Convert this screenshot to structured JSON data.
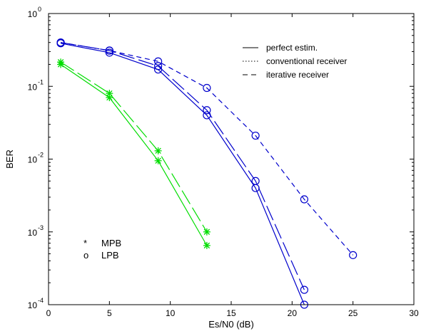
{
  "chart_data": {
    "type": "line",
    "xlabel": "Es/N0 (dB)",
    "ylabel": "BER",
    "xlim": [
      0,
      30
    ],
    "ylim": [
      0.0001,
      1
    ],
    "yscale": "log",
    "grid": false,
    "xticks": [
      0,
      5,
      10,
      15,
      20,
      25,
      30
    ],
    "yticks": [
      {
        "value": 1,
        "base": "10",
        "exp": "0"
      },
      {
        "value": 0.1,
        "base": "10",
        "exp": "-1"
      },
      {
        "value": 0.01,
        "base": "10",
        "exp": "-2"
      },
      {
        "value": 0.001,
        "base": "10",
        "exp": "-3"
      },
      {
        "value": 0.0001,
        "base": "10",
        "exp": "-4"
      }
    ],
    "series": [
      {
        "color": "#00dd00",
        "dash": "solid",
        "marker": "star",
        "x": [
          1,
          5,
          9,
          13
        ],
        "y": [
          0.2,
          0.07,
          0.0095,
          0.00065
        ]
      },
      {
        "color": "#00dd00",
        "dash": "longdash",
        "marker": "star",
        "x": [
          1,
          5,
          9,
          13
        ],
        "y": [
          0.215,
          0.08,
          0.013,
          0.001
        ]
      },
      {
        "color": "#0000cc",
        "dash": "solid",
        "marker": "circle",
        "x": [
          1,
          5,
          9,
          13,
          17,
          21
        ],
        "y": [
          0.39,
          0.29,
          0.17,
          0.04,
          0.004,
          0.0001
        ]
      },
      {
        "color": "#0000cc",
        "dash": "longdash",
        "marker": "circle",
        "x": [
          1,
          5,
          9,
          13,
          17,
          21
        ],
        "y": [
          0.4,
          0.31,
          0.19,
          0.047,
          0.005,
          0.00016
        ]
      },
      {
        "color": "#0000cc",
        "dash": "shortdash",
        "marker": "circle",
        "x": [
          1,
          5,
          9,
          13,
          17,
          21,
          25
        ],
        "y": [
          0.4,
          0.31,
          0.22,
          0.095,
          0.021,
          0.0028,
          0.00048
        ]
      }
    ],
    "legend_lines": {
      "placement": "top-right",
      "items": [
        {
          "label": "perfect estim.",
          "dash": "solid"
        },
        {
          "label": "conventional receiver",
          "dash": "dotted"
        },
        {
          "label": "iterative receiver",
          "dash": "dashed"
        }
      ]
    },
    "legend_markers": {
      "placement": "bottom-left",
      "items": [
        {
          "symbol": "*",
          "label": "MPB"
        },
        {
          "symbol": "o",
          "label": "LPB"
        }
      ]
    }
  }
}
